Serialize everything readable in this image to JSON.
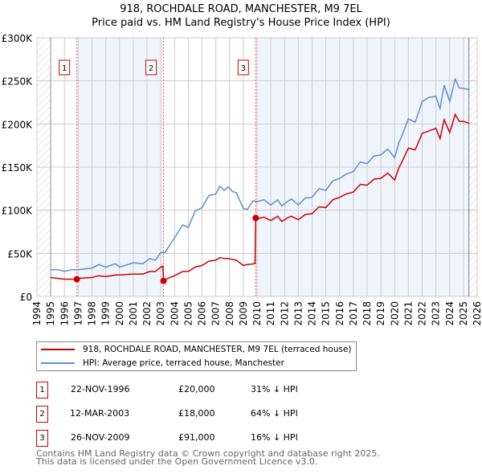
{
  "chart_data": {
    "type": "line",
    "title": "918, ROCHDALE ROAD, MANCHESTER, M9 7EL",
    "subtitle": "Price paid vs. HM Land Registry's House Price Index (HPI)",
    "xlim": [
      1994,
      2026
    ],
    "ylim": [
      0,
      300000
    ],
    "y_ticks": [
      {
        "v": 0,
        "label": "£0"
      },
      {
        "v": 50000,
        "label": "£50K"
      },
      {
        "v": 100000,
        "label": "£100K"
      },
      {
        "v": 150000,
        "label": "£150K"
      },
      {
        "v": 200000,
        "label": "£200K"
      },
      {
        "v": 250000,
        "label": "£250K"
      },
      {
        "v": 300000,
        "label": "£300K"
      }
    ],
    "x_ticks": [
      "1994",
      "1995",
      "1996",
      "1997",
      "1998",
      "1999",
      "2000",
      "2001",
      "2002",
      "2003",
      "2004",
      "2005",
      "2006",
      "2007",
      "2008",
      "2009",
      "2010",
      "2011",
      "2012",
      "2013",
      "2014",
      "2015",
      "2016",
      "2017",
      "2018",
      "2019",
      "2020",
      "2021",
      "2022",
      "2023",
      "2024",
      "2025",
      "2026"
    ],
    "grid": true,
    "data_end": 2025.4,
    "series": [
      {
        "name": "918, ROCHDALE ROAD, MANCHESTER, M9 7EL (terraced house)",
        "color": "#cc0000",
        "x": [
          1995,
          1995.5,
          1996,
          1996.5,
          1996.9,
          1997,
          1998,
          1998.5,
          1999,
          1999.7,
          2000,
          2001,
          2001.7,
          2002.2,
          2002.6,
          2003,
          2003.15,
          2003.2,
          2003.5,
          2004,
          2004.6,
          2005,
          2005.5,
          2006,
          2006.5,
          2007,
          2007.3,
          2007.6,
          2007.9,
          2008.2,
          2008.5,
          2009,
          2009.3,
          2009.85,
          2009.9,
          2010,
          2010.5,
          2011,
          2011.5,
          2011.8,
          2012.2,
          2012.5,
          2013,
          2013.5,
          2014,
          2014.5,
          2015,
          2015.5,
          2016,
          2016.5,
          2017,
          2017.5,
          2018,
          2018.5,
          2019,
          2019.5,
          2020,
          2020.3,
          2020.5,
          2021,
          2021.5,
          2022,
          2022.5,
          2023,
          2023.3,
          2023.6,
          2024,
          2024.4,
          2024.7,
          2025,
          2025.4
        ],
        "y": [
          22000,
          21000,
          20000,
          20000,
          20000,
          21000,
          22000,
          24000,
          23000,
          25000,
          25000,
          26000,
          26000,
          29000,
          29000,
          34000,
          35000,
          18000,
          21000,
          24000,
          29000,
          29000,
          34000,
          36000,
          41000,
          42000,
          45000,
          44000,
          44000,
          43000,
          42000,
          36000,
          37000,
          38000,
          91000,
          90000,
          92000,
          88000,
          93000,
          87000,
          91000,
          93000,
          89000,
          95000,
          96000,
          104000,
          103000,
          112000,
          115000,
          119000,
          121000,
          130000,
          129000,
          136000,
          137000,
          143000,
          135000,
          149000,
          155000,
          172000,
          170000,
          189000,
          192000,
          195000,
          183000,
          205000,
          190000,
          211000,
          203000,
          203000,
          201000
        ]
      },
      {
        "name": "HPI: Average price, terraced house, Manchester",
        "color": "#5b8fd6",
        "x": [
          1995,
          1995.5,
          1996,
          1996.5,
          1997,
          1998,
          1998.5,
          1999,
          1999.7,
          2000,
          2001,
          2001.7,
          2002.2,
          2002.6,
          2003,
          2003.3,
          2004,
          2004.6,
          2005,
          2005.5,
          2006,
          2006.5,
          2007,
          2007.3,
          2007.6,
          2007.9,
          2008.2,
          2008.5,
          2009,
          2009.3,
          2009.7,
          2010,
          2010.5,
          2011,
          2011.5,
          2011.8,
          2012.2,
          2012.5,
          2013,
          2013.5,
          2014,
          2014.5,
          2015,
          2015.5,
          2016,
          2016.5,
          2017,
          2017.5,
          2018,
          2018.5,
          2019,
          2019.5,
          2020,
          2020.3,
          2020.5,
          2021,
          2021.5,
          2022,
          2022.5,
          2023,
          2023.3,
          2023.6,
          2024,
          2024.4,
          2024.7,
          2025,
          2025.4
        ],
        "y": [
          31000,
          31000,
          29000,
          31000,
          31000,
          33000,
          37000,
          34000,
          38000,
          34000,
          39000,
          38000,
          44000,
          42000,
          51000,
          51000,
          68000,
          83000,
          80000,
          99000,
          103000,
          117000,
          119000,
          128000,
          123000,
          127000,
          122000,
          120000,
          102000,
          101000,
          111000,
          110000,
          112000,
          106000,
          112000,
          105000,
          110000,
          113000,
          106000,
          114000,
          115000,
          125000,
          123000,
          134000,
          137000,
          142000,
          145000,
          156000,
          154000,
          163000,
          164000,
          171000,
          161000,
          178000,
          185000,
          206000,
          202000,
          226000,
          231000,
          232000,
          218000,
          245000,
          226000,
          252000,
          242000,
          241000,
          240000
        ]
      }
    ],
    "sales": [
      {
        "label": "1",
        "x": 1996.9,
        "value": 20000,
        "date": "22-NOV-1996",
        "price": "£20,000",
        "hpi": "31% ↓ HPI"
      },
      {
        "label": "2",
        "x": 2003.2,
        "value": 18000,
        "date": "12-MAR-2003",
        "price": "£18,000",
        "hpi": "64% ↓ HPI"
      },
      {
        "label": "3",
        "x": 2009.9,
        "value": 91000,
        "date": "26-NOV-2009",
        "price": "£91,000",
        "hpi": "16% ↓ HPI"
      }
    ],
    "legend_placement": "bottom"
  },
  "footer": {
    "line1": "Contains HM Land Registry data © Crown copyright and database right 2025.",
    "line2": "This data is licensed under the Open Government Licence v3.0."
  }
}
